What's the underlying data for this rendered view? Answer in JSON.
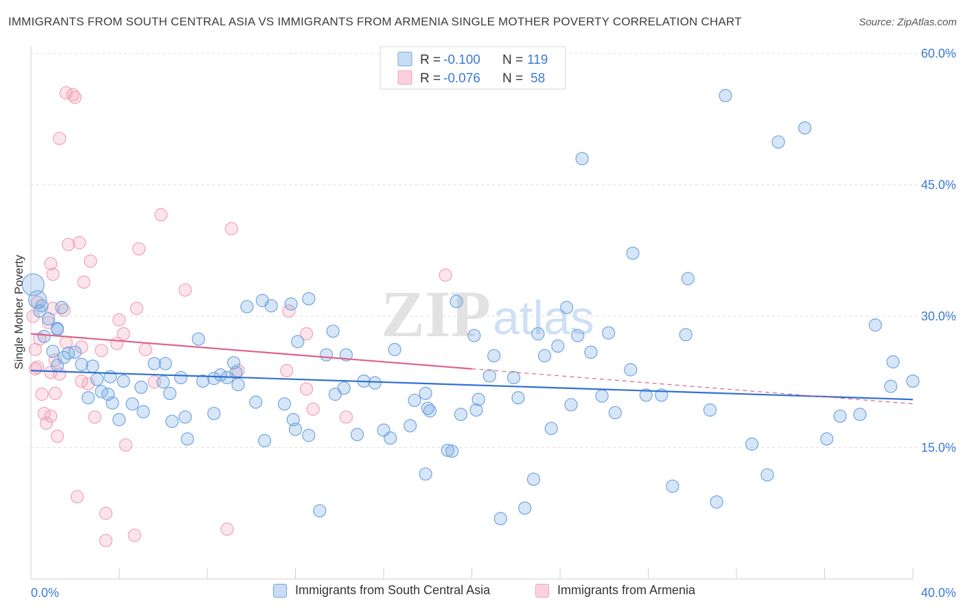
{
  "title": "IMMIGRANTS FROM SOUTH CENTRAL ASIA VS IMMIGRANTS FROM ARMENIA SINGLE MOTHER POVERTY CORRELATION CHART",
  "source": "Source: ZipAtlas.com",
  "watermark": {
    "zip": "ZIP",
    "atlas": "atlas"
  },
  "colors": {
    "blue": "#6fa4e0",
    "blue_line": "#2f6fd1",
    "pink": "#f2a0b8",
    "pink_line": "#e0608a",
    "axis_text": "#3a7bd5"
  },
  "chart_data": {
    "type": "scatter",
    "title": "IMMIGRANTS FROM SOUTH CENTRAL ASIA VS IMMIGRANTS FROM ARMENIA SINGLE MOTHER POVERTY CORRELATION CHART",
    "xlabel": "",
    "ylabel": "Single Mother Poverty",
    "xlim": [
      0,
      40
    ],
    "ylim": [
      0,
      60
    ],
    "x_tick_labels": [
      "0.0%",
      "40.0%"
    ],
    "y_ticks": [
      15,
      30,
      45,
      60
    ],
    "y_tick_labels": [
      "15.0%",
      "30.0%",
      "45.0%",
      "60.0%"
    ],
    "grid": true,
    "legend_placement": "top-center",
    "stats": [
      {
        "r_label": "R =",
        "r_value": "-0.100",
        "n_label": "N =",
        "n_value": "119"
      },
      {
        "r_label": "R =",
        "r_value": "-0.076",
        "n_label": "N =",
        "n_value": "58"
      }
    ],
    "series": [
      {
        "name": "Immigrants from South Central Asia",
        "color": "#6fa4e0",
        "trend": {
          "x": [
            0,
            40
          ],
          "y": [
            23.8,
            20.5
          ]
        },
        "points": [
          [
            0.1,
            33.6
          ],
          [
            0.3,
            31.9
          ],
          [
            0.5,
            31.2
          ],
          [
            0.8,
            29.7
          ],
          [
            0.6,
            27.7
          ],
          [
            1.2,
            28.6
          ],
          [
            1.0,
            26.0
          ],
          [
            1.5,
            25.3
          ],
          [
            1.7,
            25.8
          ],
          [
            2.3,
            24.5
          ],
          [
            2.0,
            25.9
          ],
          [
            1.4,
            31.0
          ],
          [
            1.2,
            24.4
          ],
          [
            3.6,
            23.1
          ],
          [
            3.2,
            21.4
          ],
          [
            4.6,
            20.0
          ],
          [
            4.2,
            22.6
          ],
          [
            2.6,
            20.7
          ],
          [
            3.0,
            22.8
          ],
          [
            3.7,
            20.1
          ],
          [
            3.5,
            21.1
          ],
          [
            5.0,
            21.9
          ],
          [
            5.6,
            24.6
          ],
          [
            6.1,
            24.6
          ],
          [
            6.8,
            23.0
          ],
          [
            6.0,
            22.5
          ],
          [
            5.1,
            19.1
          ],
          [
            6.4,
            18.0
          ],
          [
            7.0,
            18.5
          ],
          [
            7.8,
            22.6
          ],
          [
            8.3,
            22.9
          ],
          [
            8.6,
            23.3
          ],
          [
            8.9,
            23.0
          ],
          [
            9.4,
            22.2
          ],
          [
            8.3,
            18.9
          ],
          [
            9.2,
            24.7
          ],
          [
            9.8,
            31.1
          ],
          [
            10.5,
            31.8
          ],
          [
            10.9,
            31.2
          ],
          [
            11.8,
            31.4
          ],
          [
            12.6,
            32.0
          ],
          [
            7.1,
            16.0
          ],
          [
            10.6,
            15.8
          ],
          [
            11.5,
            20.0
          ],
          [
            12.0,
            17.1
          ],
          [
            12.6,
            16.4
          ],
          [
            11.9,
            18.2
          ],
          [
            13.4,
            25.6
          ],
          [
            13.8,
            21.1
          ],
          [
            14.3,
            25.6
          ],
          [
            14.8,
            16.5
          ],
          [
            15.1,
            22.6
          ],
          [
            15.6,
            22.4
          ],
          [
            16.5,
            26.2
          ],
          [
            16.3,
            16.1
          ],
          [
            17.2,
            17.5
          ],
          [
            17.9,
            21.2
          ],
          [
            17.4,
            20.4
          ],
          [
            18.0,
            19.5
          ],
          [
            18.9,
            14.7
          ],
          [
            19.1,
            14.6
          ],
          [
            19.5,
            18.8
          ],
          [
            20.2,
            19.3
          ],
          [
            20.3,
            20.5
          ],
          [
            17.9,
            12.0
          ],
          [
            19.3,
            31.7
          ],
          [
            20.1,
            27.8
          ],
          [
            21.0,
            25.5
          ],
          [
            21.9,
            23.0
          ],
          [
            22.1,
            20.7
          ],
          [
            23.3,
            25.5
          ],
          [
            23.0,
            28.0
          ],
          [
            23.9,
            26.6
          ],
          [
            24.8,
            27.8
          ],
          [
            25.4,
            25.9
          ],
          [
            25.9,
            20.9
          ],
          [
            24.5,
            19.9
          ],
          [
            23.6,
            17.2
          ],
          [
            24.3,
            31.0
          ],
          [
            22.8,
            11.4
          ],
          [
            26.2,
            28.1
          ],
          [
            27.2,
            23.9
          ],
          [
            27.9,
            21.0
          ],
          [
            28.6,
            21.0
          ],
          [
            29.1,
            10.6
          ],
          [
            29.8,
            34.3
          ],
          [
            30.8,
            19.3
          ],
          [
            31.1,
            8.8
          ],
          [
            32.7,
            15.4
          ],
          [
            33.4,
            11.9
          ],
          [
            36.1,
            16.0
          ],
          [
            37.6,
            18.8
          ],
          [
            39.1,
            24.8
          ],
          [
            40.0,
            22.6
          ],
          [
            29.7,
            27.9
          ],
          [
            26.5,
            19.0
          ],
          [
            9.3,
            23.6
          ],
          [
            10.2,
            20.2
          ],
          [
            6.3,
            21.2
          ],
          [
            7.6,
            27.4
          ],
          [
            12.1,
            27.1
          ],
          [
            13.1,
            7.8
          ],
          [
            18.1,
            19.2
          ],
          [
            21.3,
            6.9
          ],
          [
            22.4,
            8.1
          ],
          [
            27.3,
            37.2
          ],
          [
            31.5,
            55.2
          ],
          [
            25.0,
            48.0
          ],
          [
            35.1,
            51.5
          ],
          [
            38.3,
            29.0
          ],
          [
            39.0,
            22.0
          ],
          [
            33.9,
            49.9
          ],
          [
            36.7,
            18.6
          ],
          [
            20.8,
            23.2
          ],
          [
            16.0,
            17.0
          ],
          [
            14.2,
            21.8
          ],
          [
            13.7,
            28.3
          ],
          [
            1.2,
            28.5
          ],
          [
            2.8,
            24.3
          ],
          [
            4.0,
            18.2
          ],
          [
            0.4,
            30.6
          ]
        ]
      },
      {
        "name": "Immigrants from Armenia",
        "color": "#f2a0b8",
        "trend": {
          "x": [
            0,
            20
          ],
          "y": [
            28.0,
            24.0
          ]
        },
        "trend_extension": {
          "x": [
            20,
            40
          ],
          "y": [
            24.0,
            20.0
          ]
        },
        "points": [
          [
            1.6,
            55.5
          ],
          [
            1.9,
            55.3
          ],
          [
            2.0,
            55.0
          ],
          [
            1.3,
            50.3
          ],
          [
            5.9,
            41.6
          ],
          [
            9.1,
            40.0
          ],
          [
            1.7,
            38.2
          ],
          [
            2.2,
            38.4
          ],
          [
            4.9,
            37.7
          ],
          [
            2.7,
            36.3
          ],
          [
            0.9,
            36.0
          ],
          [
            1.0,
            34.8
          ],
          [
            2.4,
            33.9
          ],
          [
            7.0,
            33.0
          ],
          [
            18.8,
            34.7
          ],
          [
            0.3,
            31.6
          ],
          [
            1.0,
            30.9
          ],
          [
            1.5,
            30.7
          ],
          [
            4.8,
            30.9
          ],
          [
            11.7,
            30.6
          ],
          [
            0.1,
            30.0
          ],
          [
            0.8,
            29.3
          ],
          [
            4.0,
            29.6
          ],
          [
            3.9,
            26.9
          ],
          [
            0.4,
            27.4
          ],
          [
            1.6,
            27.0
          ],
          [
            2.3,
            26.5
          ],
          [
            4.2,
            28.0
          ],
          [
            12.5,
            28.0
          ],
          [
            0.2,
            26.2
          ],
          [
            1.1,
            25.0
          ],
          [
            3.2,
            26.1
          ],
          [
            5.2,
            26.2
          ],
          [
            0.2,
            24.0
          ],
          [
            0.3,
            24.2
          ],
          [
            0.9,
            23.6
          ],
          [
            1.3,
            23.4
          ],
          [
            9.4,
            23.8
          ],
          [
            11.6,
            23.8
          ],
          [
            2.3,
            22.6
          ],
          [
            2.6,
            22.3
          ],
          [
            5.6,
            22.5
          ],
          [
            12.5,
            21.7
          ],
          [
            0.5,
            21.1
          ],
          [
            1.1,
            21.2
          ],
          [
            0.6,
            18.9
          ],
          [
            0.9,
            18.6
          ],
          [
            2.9,
            18.5
          ],
          [
            14.3,
            18.5
          ],
          [
            12.8,
            19.4
          ],
          [
            1.2,
            16.3
          ],
          [
            4.3,
            15.3
          ],
          [
            2.1,
            9.4
          ],
          [
            3.4,
            7.5
          ],
          [
            4.7,
            5.0
          ],
          [
            8.9,
            5.7
          ],
          [
            3.4,
            4.4
          ],
          [
            0.7,
            17.8
          ]
        ]
      }
    ]
  }
}
